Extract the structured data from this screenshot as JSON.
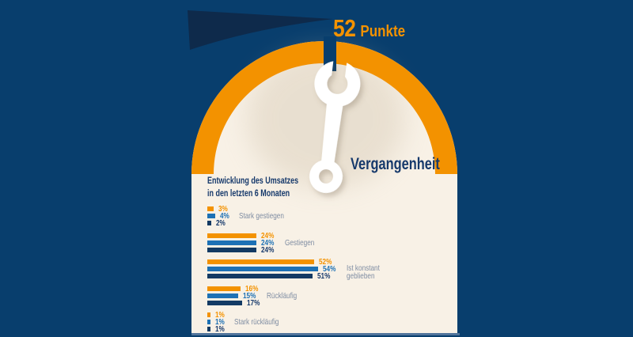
{
  "gauge": {
    "score_value": "52",
    "score_unit": "Punkte",
    "side_label": "Vergangenheit"
  },
  "chart_data": {
    "type": "bar",
    "orientation": "horizontal",
    "title_line1": "Entwicklung des Umsatzes",
    "title_line2": "in den letzten 6 Monaten",
    "unit": "%",
    "xlim": [
      0,
      60
    ],
    "grid": false,
    "legend": "none",
    "categories": [
      "Stark gestiegen",
      "Gestiegen",
      "Ist konstant geblieben",
      "Rückläufig",
      "Stark rückläufig"
    ],
    "series": [
      {
        "name": "orange",
        "color": "#F39200",
        "values": [
          3,
          24,
          52,
          16,
          1
        ]
      },
      {
        "name": "blue",
        "color": "#1D71B5",
        "values": [
          4,
          24,
          54,
          15,
          1
        ]
      },
      {
        "name": "dark_blue",
        "color": "#133A63",
        "values": [
          2,
          24,
          51,
          17,
          1
        ]
      }
    ],
    "value_labels": [
      [
        "3%",
        "4%",
        "2%"
      ],
      [
        "24%",
        "24%",
        "24%"
      ],
      [
        "52%",
        "54%",
        "51%"
      ],
      [
        "16%",
        "15%",
        "17%"
      ],
      [
        "1%",
        "1%",
        "1%"
      ]
    ]
  },
  "icons": {
    "wrench": "wrench-icon",
    "needle": "needle-wedge"
  },
  "colors": {
    "background_navy": "#083E6D",
    "needle_navy": "#0E2A4B",
    "accent_orange": "#F39200",
    "panel_cream": "#F8F1E6",
    "text_navy": "#16396B",
    "category_gray": "#7E8CA2",
    "bottom_rule_blue": "#51759C",
    "wrench_white": "#FFFFFF"
  }
}
